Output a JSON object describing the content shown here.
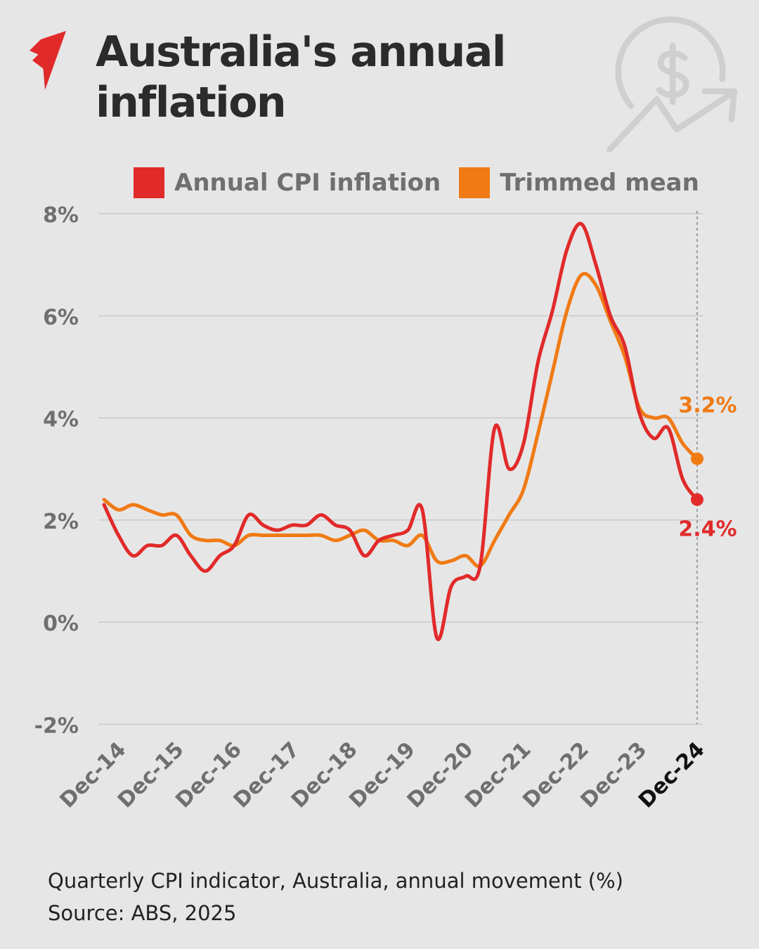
{
  "title": "Australia's annual inflation",
  "logo": "SBS",
  "decor_icon": "dollar-growth-icon",
  "footer": {
    "note": "Quarterly CPI indicator, Australia, annual movement (%)",
    "source": "Source: ABS, 2025"
  },
  "chart_data": {
    "type": "line",
    "title": "",
    "xlabel": "",
    "ylabel": "",
    "ylim": [
      -2,
      8
    ],
    "yticks": [
      "8%",
      "6%",
      "4%",
      "2%",
      "0%",
      "-2%"
    ],
    "ytick_values": [
      8,
      6,
      4,
      2,
      0,
      -2
    ],
    "grid": true,
    "legend_placement": "top",
    "x": [
      "Sep-14",
      "Dec-14",
      "Mar-15",
      "Jun-15",
      "Sep-15",
      "Dec-15",
      "Mar-16",
      "Jun-16",
      "Sep-16",
      "Dec-16",
      "Mar-17",
      "Jun-17",
      "Sep-17",
      "Dec-17",
      "Mar-18",
      "Jun-18",
      "Sep-18",
      "Dec-18",
      "Mar-19",
      "Jun-19",
      "Sep-19",
      "Dec-19",
      "Mar-20",
      "Jun-20",
      "Sep-20",
      "Dec-20",
      "Mar-21",
      "Jun-21",
      "Sep-21",
      "Dec-21",
      "Mar-22",
      "Jun-22",
      "Sep-22",
      "Dec-22",
      "Mar-23",
      "Jun-23",
      "Sep-23",
      "Dec-23",
      "Mar-24",
      "Jun-24",
      "Sep-24",
      "Dec-24"
    ],
    "xtick_labels": [
      "Dec-14",
      "Dec-15",
      "Dec-16",
      "Dec-17",
      "Dec-18",
      "Dec-19",
      "Dec-20",
      "Dec-21",
      "Dec-22",
      "Dec-23",
      "Dec-24"
    ],
    "series": [
      {
        "name": "Annual CPI inflation",
        "color": "#e12a2a",
        "values": [
          2.3,
          1.7,
          1.3,
          1.5,
          1.5,
          1.7,
          1.3,
          1.0,
          1.3,
          1.5,
          2.1,
          1.9,
          1.8,
          1.9,
          1.9,
          2.1,
          1.9,
          1.8,
          1.3,
          1.6,
          1.7,
          1.8,
          2.2,
          -0.3,
          0.7,
          0.9,
          1.1,
          3.8,
          3.0,
          3.5,
          5.1,
          6.1,
          7.3,
          7.8,
          7.0,
          6.0,
          5.4,
          4.1,
          3.6,
          3.8,
          2.8,
          2.4
        ],
        "end_label": "2.4%"
      },
      {
        "name": "Trimmed mean",
        "color": "#f07a14",
        "values": [
          2.4,
          2.2,
          2.3,
          2.2,
          2.1,
          2.1,
          1.7,
          1.6,
          1.6,
          1.5,
          1.7,
          1.7,
          1.7,
          1.7,
          1.7,
          1.7,
          1.6,
          1.7,
          1.8,
          1.6,
          1.6,
          1.5,
          1.7,
          1.2,
          1.2,
          1.3,
          1.1,
          1.6,
          2.1,
          2.6,
          3.7,
          4.9,
          6.1,
          6.8,
          6.6,
          5.9,
          5.2,
          4.2,
          4.0,
          4.0,
          3.5,
          3.2
        ],
        "end_label": "3.2%"
      }
    ]
  }
}
